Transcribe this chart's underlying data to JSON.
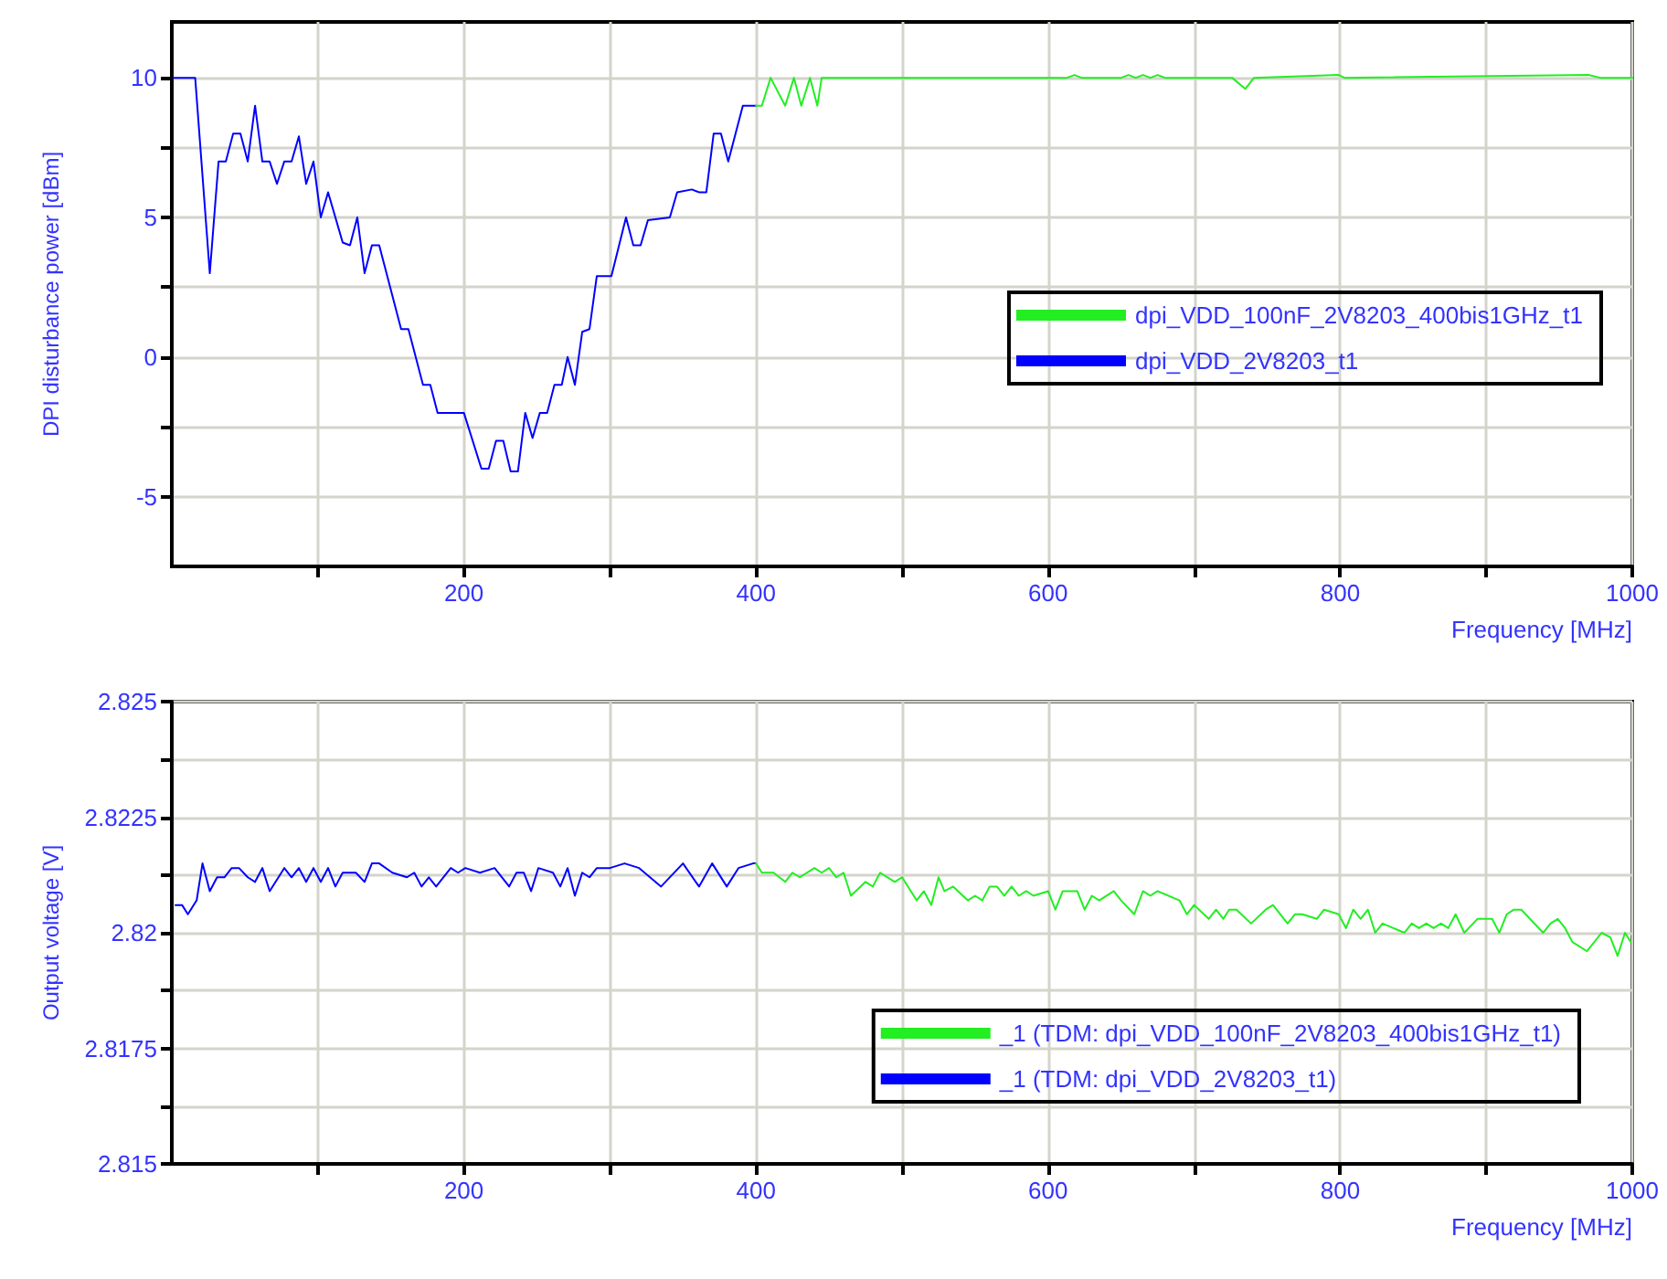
{
  "chart_data": [
    {
      "type": "line",
      "ylabel": "DPI disturbance power [dBm]",
      "xlabel": "Frequency [MHz]",
      "xlim": [
        0,
        1000
      ],
      "xticks": [
        {
          "value": 100,
          "label": null
        },
        200,
        {
          "value": 300,
          "label": null
        },
        400,
        {
          "value": 500,
          "label": null
        },
        600,
        {
          "value": 700,
          "label": null
        },
        800,
        {
          "value": 900,
          "label": null
        },
        1000
      ],
      "ylim": [
        -7.5,
        12
      ],
      "yticks": [
        -5,
        {
          "value": -2.5,
          "label": null
        },
        0,
        {
          "value": 2.5,
          "label": null
        },
        5,
        {
          "value": 7.5,
          "label": null
        },
        10
      ],
      "grid": true,
      "legend": "right",
      "marker": "none",
      "line_style": "solid",
      "series": [
        {
          "name": "dpi_VDD_100nF_2V8203_400bis1GHz_t1",
          "color": "#22ee22",
          "x": [
            400,
            404,
            410,
            420,
            426,
            431,
            437,
            442,
            445,
            613,
            618,
            623,
            650,
            655,
            660,
            665,
            670,
            675,
            680,
            726,
            735,
            741,
            799,
            803,
            970,
            978,
            1000
          ],
          "values": [
            9,
            9,
            10,
            9,
            10,
            9,
            10,
            9,
            10,
            10,
            10.1,
            10,
            10,
            10.1,
            10,
            10.1,
            10,
            10.1,
            10,
            10,
            9.6,
            10,
            10.1,
            10,
            10.1,
            10,
            10
          ]
        },
        {
          "name": "dpi_VDD_2V8203_t1",
          "color": "#0000ff",
          "x": [
            1,
            16,
            26,
            32,
            37,
            42,
            47,
            52,
            57,
            62,
            67,
            72,
            77,
            82,
            87,
            92,
            97,
            102,
            107,
            117,
            122,
            127,
            132,
            137,
            142,
            157,
            162,
            172,
            177,
            182,
            200,
            212,
            217,
            222,
            227,
            232,
            237,
            242,
            247,
            252,
            257,
            262,
            267,
            271,
            276,
            281,
            286,
            291,
            301,
            311,
            316,
            321,
            326,
            341,
            346,
            356,
            361,
            366,
            371,
            376,
            381,
            391,
            400
          ],
          "values": [
            10,
            10,
            3,
            7,
            7,
            8,
            8,
            7,
            9,
            7,
            7,
            6.2,
            7,
            7,
            7.9,
            6.2,
            7,
            5,
            5.9,
            4.1,
            4,
            5,
            3,
            4,
            4,
            1,
            1,
            -1,
            -1,
            -2,
            -2,
            -4,
            -4,
            -3,
            -3,
            -4.1,
            -4.1,
            -2,
            -2.9,
            -2,
            -2,
            -1,
            -1,
            0,
            -1,
            0.9,
            1,
            2.9,
            2.9,
            5,
            4,
            4,
            4.9,
            5,
            5.9,
            6,
            5.9,
            5.9,
            8,
            8,
            7,
            9,
            9
          ]
        }
      ]
    },
    {
      "type": "line",
      "ylabel": "Output voltage [V]",
      "xlabel": "Frequency [MHz]",
      "xlim": [
        0,
        1000
      ],
      "xticks": [
        {
          "value": 100,
          "label": null
        },
        200,
        {
          "value": 300,
          "label": null
        },
        400,
        {
          "value": 500,
          "label": null
        },
        600,
        {
          "value": 700,
          "label": null
        },
        800,
        {
          "value": 900,
          "label": null
        },
        1000
      ],
      "ylim": [
        2.815,
        2.825
      ],
      "yticks": [
        2.815,
        {
          "value": 2.81625,
          "label": null
        },
        2.8175,
        {
          "value": 2.81875,
          "label": null
        },
        2.82,
        {
          "value": 2.82125,
          "label": null
        },
        2.8225,
        {
          "value": 2.82375,
          "label": null
        },
        2.825
      ],
      "grid": true,
      "legend": "bottom right",
      "marker": "none",
      "line_style": "solid",
      "series": [
        {
          "name": "_1 (TDM: dpi_VDD_100nF_2V8203_400bis1GHz_t1)",
          "color": "#22ee22",
          "x": [
            400,
            404,
            412,
            420,
            425,
            430,
            440,
            445,
            450,
            455,
            460,
            465,
            475,
            480,
            485,
            495,
            500,
            510,
            515,
            520,
            525,
            529,
            535,
            545,
            550,
            555,
            560,
            565,
            570,
            575,
            580,
            585,
            590,
            600,
            605,
            610,
            620,
            625,
            630,
            635,
            645,
            650,
            659,
            665,
            670,
            675,
            690,
            695,
            700,
            710,
            715,
            720,
            724,
            729,
            739,
            749,
            754,
            764,
            769,
            774,
            784,
            789,
            799,
            804,
            809,
            814,
            819,
            824,
            829,
            844,
            849,
            854,
            859,
            864,
            869,
            874,
            879,
            885,
            894,
            904,
            909,
            914,
            919,
            924,
            939,
            944,
            949,
            954,
            959,
            969,
            979,
            985,
            990,
            995,
            999
          ],
          "values": [
            2.8215,
            2.8213,
            2.8213,
            2.8211,
            2.8213,
            2.8212,
            2.8214,
            2.8213,
            2.8214,
            2.8212,
            2.8213,
            2.8208,
            2.8211,
            2.821,
            2.8213,
            2.8211,
            2.8212,
            2.8207,
            2.8209,
            2.8206,
            2.8212,
            2.8209,
            2.821,
            2.8207,
            2.8208,
            2.8207,
            2.821,
            2.821,
            2.8208,
            2.821,
            2.8208,
            2.8209,
            2.8208,
            2.8209,
            2.8205,
            2.8209,
            2.8209,
            2.8205,
            2.8208,
            2.8207,
            2.8209,
            2.8207,
            2.8204,
            2.8209,
            2.8208,
            2.8209,
            2.8207,
            2.8204,
            2.8206,
            2.8203,
            2.8205,
            2.8203,
            2.8205,
            2.8205,
            2.8202,
            2.8205,
            2.8206,
            2.8202,
            2.8204,
            2.8204,
            2.8203,
            2.8205,
            2.8204,
            2.8201,
            2.8205,
            2.8203,
            2.8205,
            2.82,
            2.8202,
            2.82,
            2.8202,
            2.8201,
            2.8202,
            2.8201,
            2.8202,
            2.8201,
            2.8204,
            2.82,
            2.8203,
            2.8203,
            2.82,
            2.8204,
            2.8205,
            2.8205,
            2.82,
            2.8202,
            2.8203,
            2.8201,
            2.8198,
            2.8196,
            2.82,
            2.8199,
            2.8195,
            2.82,
            2.8198
          ]
        },
        {
          "name": "_1 (TDM: dpi_VDD_2V8203_t1)",
          "color": "#0000ff",
          "x": [
            2.5,
            7,
            11,
            17,
            21,
            26,
            31,
            36,
            41,
            46,
            52,
            57,
            62,
            67,
            77,
            82,
            87,
            92,
            97,
            102,
            107,
            112,
            117,
            126,
            132,
            137,
            142,
            151,
            161,
            166,
            171,
            176,
            181,
            191,
            196,
            201,
            211,
            221,
            231,
            236,
            241,
            246,
            251,
            261,
            266,
            271,
            276,
            281,
            286,
            291,
            300,
            310,
            320,
            335,
            350,
            361,
            370,
            380,
            388,
            398,
            400
          ],
          "values": [
            2.8206,
            2.8206,
            2.8204,
            2.8207,
            2.8215,
            2.8209,
            2.8212,
            2.8212,
            2.8214,
            2.8214,
            2.8212,
            2.8211,
            2.8214,
            2.8209,
            2.8214,
            2.8212,
            2.8214,
            2.8211,
            2.8214,
            2.8211,
            2.8214,
            2.821,
            2.8213,
            2.8213,
            2.8211,
            2.8215,
            2.8215,
            2.8213,
            2.8212,
            2.8213,
            2.821,
            2.8212,
            2.821,
            2.8214,
            2.8213,
            2.8214,
            2.8213,
            2.8214,
            2.821,
            2.8213,
            2.8213,
            2.8209,
            2.8214,
            2.8213,
            2.821,
            2.8214,
            2.8208,
            2.8213,
            2.8212,
            2.8214,
            2.8214,
            2.8215,
            2.8214,
            2.821,
            2.8215,
            2.821,
            2.8215,
            2.821,
            2.8214,
            2.8215,
            2.8215
          ]
        }
      ]
    }
  ]
}
